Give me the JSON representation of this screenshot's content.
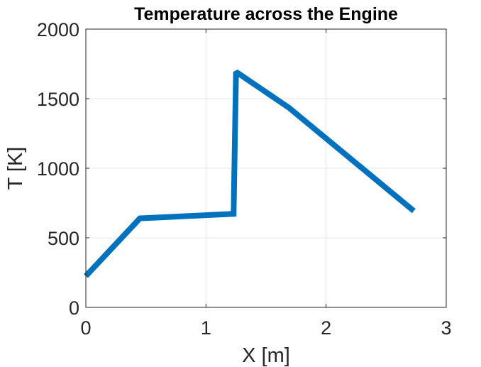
{
  "chart_data": {
    "type": "line",
    "title": "Temperature across the Engine",
    "xlabel": "X [m]",
    "ylabel": "T [K]",
    "xlim": [
      0,
      3
    ],
    "ylim": [
      0,
      2000
    ],
    "xticks": [
      0,
      1,
      2,
      3
    ],
    "xtick_labels": [
      "0",
      "1",
      "2",
      "3"
    ],
    "yticks": [
      0,
      500,
      1000,
      1500,
      2000
    ],
    "ytick_labels": [
      "0",
      "500",
      "1000",
      "1500",
      "2000"
    ],
    "grid": true,
    "series": [
      {
        "x": [
          0,
          0.45,
          1.23,
          1.25,
          1.69,
          2.73
        ],
        "y": [
          225,
          640,
          672,
          1693,
          1435,
          693
        ],
        "color": "#0072BD"
      }
    ]
  }
}
